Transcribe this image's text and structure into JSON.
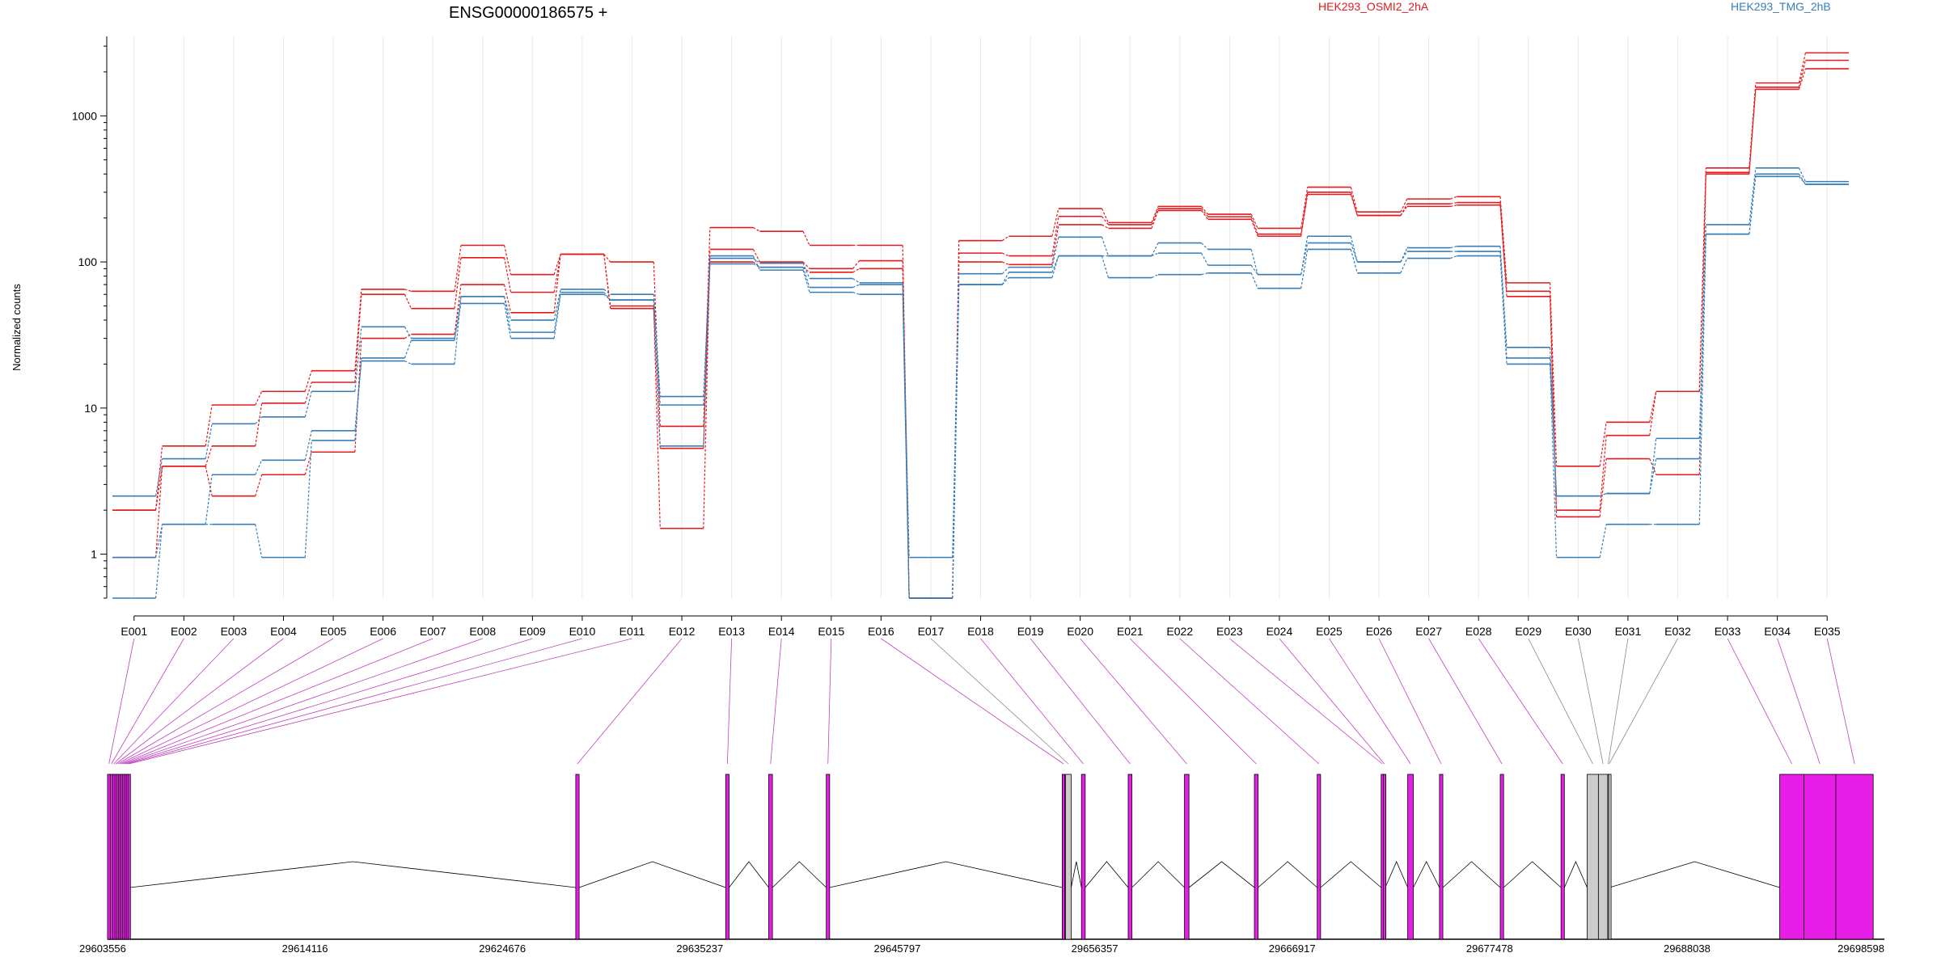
{
  "chart_data": {
    "type": "line",
    "title": "ENSG00000186575 +",
    "ylabel": "Normalized counts",
    "xlabel": "",
    "yscale": "log",
    "ylim": [
      0.5,
      3500
    ],
    "yticks": [
      "1",
      "10",
      "100",
      "1000"
    ],
    "ytick_values": [
      1,
      10,
      100,
      1000
    ],
    "grid": "vertical",
    "legend_position": "top",
    "categories": [
      "E001",
      "E002",
      "E003",
      "E004",
      "E005",
      "E006",
      "E007",
      "E008",
      "E009",
      "E010",
      "E011",
      "E012",
      "E013",
      "E014",
      "E015",
      "E016",
      "E017",
      "E018",
      "E019",
      "E020",
      "E021",
      "E022",
      "E023",
      "E024",
      "E025",
      "E026",
      "E027",
      "E028",
      "E029",
      "E030",
      "E031",
      "E032",
      "E033",
      "E034",
      "E035"
    ],
    "series": [
      {
        "name": "HEK293_OSMI2_2hA",
        "color": "#e41a1c",
        "values": [
          2.0,
          5.5,
          10.5,
          13.0,
          18.0,
          65,
          63,
          130,
          82,
          113,
          100,
          7.5,
          172,
          162,
          130,
          130,
          0.5,
          140,
          150,
          232,
          186,
          240,
          212,
          170,
          325,
          220,
          270,
          280,
          72,
          4.0,
          8.0,
          13.0,
          440,
          1680,
          2700
        ]
      },
      {
        "name": "HEK293_OSMI2_2hA",
        "color": "#e41a1c",
        "values": [
          2.0,
          4.0,
          5.5,
          10.8,
          15.0,
          60,
          48,
          107,
          62,
          113,
          50,
          1.5,
          122,
          100,
          90,
          102,
          0.5,
          115,
          110,
          205,
          180,
          232,
          204,
          155,
          300,
          208,
          250,
          255,
          63,
          2.0,
          6.5,
          13.0,
          410,
          1570,
          2400
        ]
      },
      {
        "name": "HEK293_OSMI2_2hA",
        "color": "#e41a1c",
        "values": [
          0.95,
          4.0,
          2.5,
          3.5,
          5.0,
          30,
          32,
          70,
          45,
          113,
          48,
          5.3,
          100,
          92,
          85,
          90,
          0.5,
          100,
          96,
          180,
          170,
          225,
          196,
          150,
          290,
          208,
          240,
          245,
          58,
          1.8,
          4.5,
          3.5,
          400,
          1520,
          2100
        ]
      },
      {
        "name": "HEK293_TMG_2hB",
        "color": "#377eb8",
        "values": [
          2.5,
          4.5,
          7.8,
          8.7,
          13.0,
          36,
          30,
          58,
          40,
          65,
          60,
          12.0,
          106,
          98,
          77,
          72,
          0.95,
          83,
          92,
          148,
          110,
          135,
          122,
          82,
          150,
          100,
          125,
          128,
          26,
          2.5,
          2.6,
          6.2,
          180,
          440,
          355
        ]
      },
      {
        "name": "HEK293_TMG_2hB",
        "color": "#377eb8",
        "values": [
          0.95,
          1.6,
          3.5,
          4.4,
          7.0,
          21,
          20,
          58,
          33,
          62,
          55,
          10.5,
          97,
          92,
          67,
          70,
          0.5,
          70,
          85,
          110,
          110,
          115,
          95,
          82,
          135,
          100,
          118,
          118,
          22,
          2.5,
          2.6,
          4.5,
          155,
          385,
          340
        ]
      },
      {
        "name": "HEK293_TMG_2hB",
        "color": "#377eb8",
        "values": [
          0.5,
          1.6,
          1.6,
          0.95,
          6.0,
          22,
          29,
          52,
          30,
          60,
          55,
          5.5,
          110,
          88,
          62,
          60,
          0.5,
          70,
          78,
          110,
          78,
          82,
          84,
          66,
          122,
          84,
          106,
          110,
          20,
          0.95,
          1.6,
          1.6,
          155,
          400,
          340
        ]
      }
    ],
    "legend": [
      {
        "label": "HEK293_OSMI2_2hA",
        "color": "#e41a1c"
      },
      {
        "label": "HEK293_TMG_2hB",
        "color": "#377eb8"
      }
    ],
    "gene_model": {
      "coord_labels": [
        "29603556",
        "29614116",
        "29624676",
        "29635237",
        "29645797",
        "29656357",
        "29666917",
        "29677478",
        "29688038",
        "29698598"
      ],
      "coord_values": [
        29603556,
        29614116,
        29624676,
        29635237,
        29645797,
        29656357,
        29666917,
        29677478,
        29688038,
        29698598
      ],
      "range": [
        29603556,
        29698598
      ],
      "exons": [
        {
          "start": 29603556,
          "end": 29603700,
          "color": "#e81ee8"
        },
        {
          "start": 29603700,
          "end": 29603830,
          "color": "#e81ee8"
        },
        {
          "start": 29603830,
          "end": 29603950,
          "color": "#e81ee8"
        },
        {
          "start": 29603950,
          "end": 29604050,
          "color": "#e81ee8"
        },
        {
          "start": 29604050,
          "end": 29604150,
          "color": "#e81ee8"
        },
        {
          "start": 29604150,
          "end": 29604250,
          "color": "#e81ee8"
        },
        {
          "start": 29604250,
          "end": 29604350,
          "color": "#e81ee8"
        },
        {
          "start": 29604350,
          "end": 29604450,
          "color": "#e81ee8"
        },
        {
          "start": 29604450,
          "end": 29604550,
          "color": "#e81ee8"
        },
        {
          "start": 29604550,
          "end": 29604650,
          "color": "#e81ee8"
        },
        {
          "start": 29604650,
          "end": 29604760,
          "color": "#e81ee8"
        },
        {
          "start": 29628600,
          "end": 29628780,
          "color": "#e81ee8"
        },
        {
          "start": 29636620,
          "end": 29636800,
          "color": "#e81ee8"
        },
        {
          "start": 29638920,
          "end": 29639120,
          "color": "#e81ee8"
        },
        {
          "start": 29642000,
          "end": 29642180,
          "color": "#e81ee8"
        },
        {
          "start": 29654620,
          "end": 29654760,
          "color": "#e81ee8"
        },
        {
          "start": 29654800,
          "end": 29655100,
          "color": "#cccccc"
        },
        {
          "start": 29655650,
          "end": 29655850,
          "color": "#e81ee8"
        },
        {
          "start": 29658150,
          "end": 29658350,
          "color": "#e81ee8"
        },
        {
          "start": 29661160,
          "end": 29661400,
          "color": "#e81ee8"
        },
        {
          "start": 29664900,
          "end": 29665100,
          "color": "#e81ee8"
        },
        {
          "start": 29668260,
          "end": 29668440,
          "color": "#e81ee8"
        },
        {
          "start": 29671680,
          "end": 29671800,
          "color": "#e81ee8"
        },
        {
          "start": 29671800,
          "end": 29671900,
          "color": "#e81ee8"
        },
        {
          "start": 29673100,
          "end": 29673400,
          "color": "#e81ee8"
        },
        {
          "start": 29674800,
          "end": 29674980,
          "color": "#e81ee8"
        },
        {
          "start": 29678050,
          "end": 29678230,
          "color": "#e81ee8"
        },
        {
          "start": 29681300,
          "end": 29681480,
          "color": "#e81ee8"
        },
        {
          "start": 29682700,
          "end": 29683300,
          "color": "#cccccc"
        },
        {
          "start": 29683300,
          "end": 29683800,
          "color": "#cccccc"
        },
        {
          "start": 29683800,
          "end": 29683850,
          "color": "#cccccc"
        },
        {
          "start": 29683850,
          "end": 29683900,
          "color": "#cccccc"
        },
        {
          "start": 29693000,
          "end": 29694300,
          "color": "#e81ee8"
        },
        {
          "start": 29694300,
          "end": 29696000,
          "color": "#e81ee8"
        },
        {
          "start": 29696000,
          "end": 29698000,
          "color": "#e81ee8"
        }
      ]
    }
  }
}
